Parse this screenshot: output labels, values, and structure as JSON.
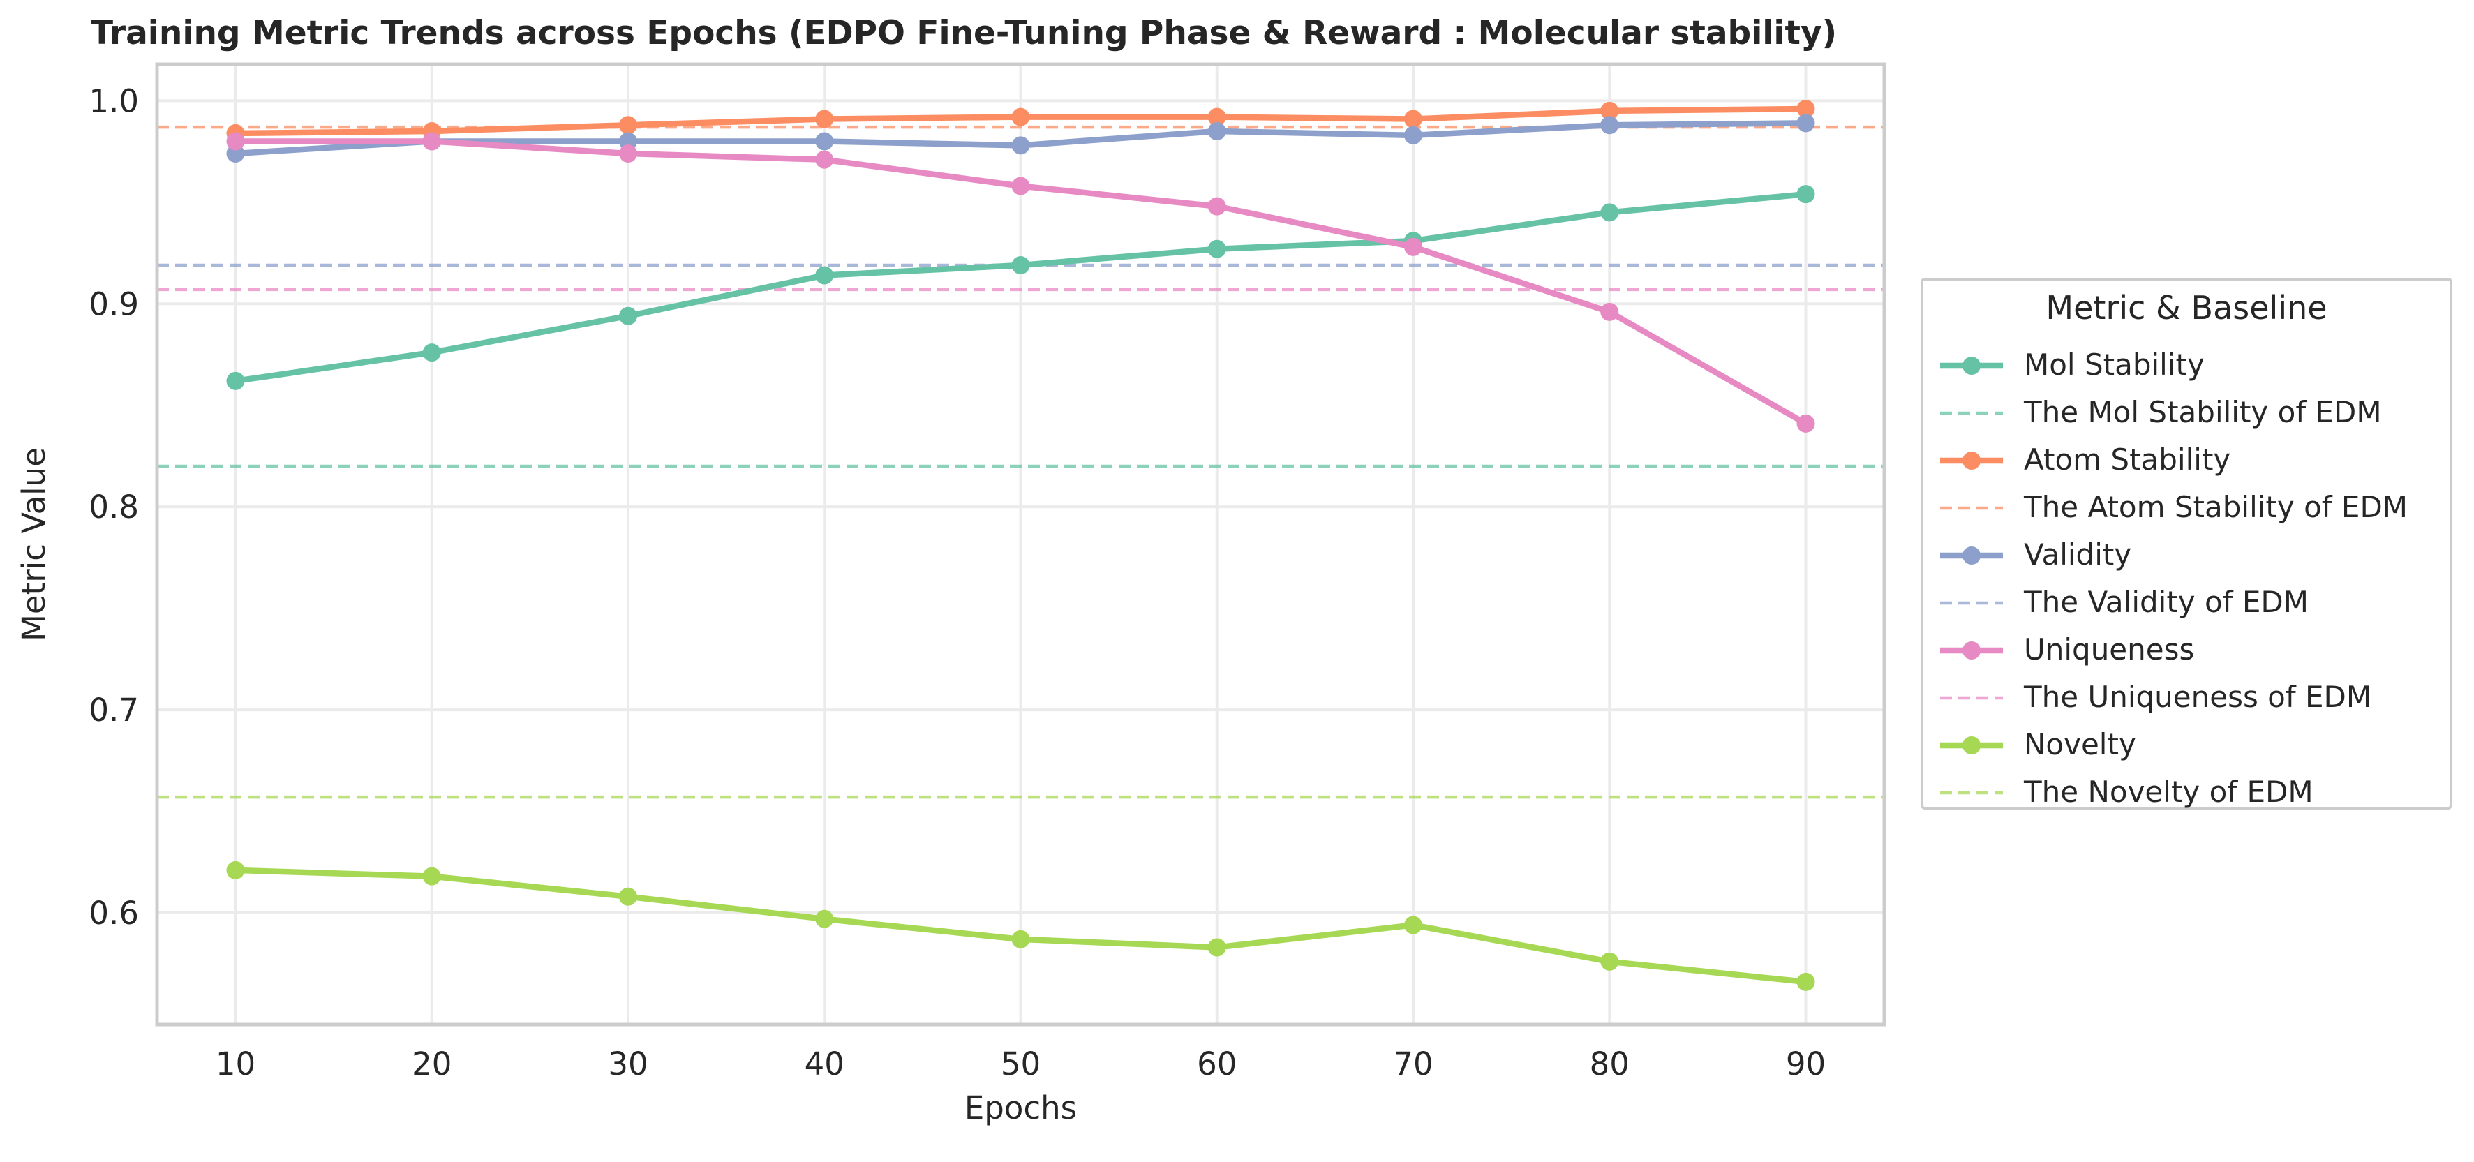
{
  "chart_data": {
    "type": "line",
    "title": "Training Metric Trends across Epochs (EDPO Fine-Tuning Phase & Reward : Molecular stability)",
    "xlabel": "Epochs",
    "ylabel": "Metric Value",
    "x": [
      10,
      20,
      30,
      40,
      50,
      60,
      70,
      80,
      90
    ],
    "xlim": [
      6,
      94
    ],
    "ylim": [
      0.545,
      1.018
    ],
    "xticks": [
      10,
      20,
      30,
      40,
      50,
      60,
      70,
      80,
      90
    ],
    "yticks": [
      0.6,
      0.7,
      0.8,
      0.9,
      1.0
    ],
    "ytick_labels": [
      "0.6",
      "0.7",
      "0.8",
      "0.9",
      "1.0"
    ],
    "grid": true,
    "legend_title": "Metric & Baseline",
    "legend_placement": "right-outside",
    "series": [
      {
        "name": "Mol Stability",
        "color": "#66c2a5",
        "values": [
          0.862,
          0.876,
          0.894,
          0.914,
          0.919,
          0.927,
          0.931,
          0.945,
          0.954
        ]
      },
      {
        "name": "Atom Stability",
        "color": "#fc8d62",
        "values": [
          0.984,
          0.985,
          0.988,
          0.991,
          0.992,
          0.992,
          0.991,
          0.995,
          0.996
        ]
      },
      {
        "name": "Validity",
        "color": "#8da0cb",
        "values": [
          0.974,
          0.98,
          0.98,
          0.98,
          0.978,
          0.985,
          0.983,
          0.988,
          0.989
        ]
      },
      {
        "name": "Uniqueness",
        "color": "#e78ac3",
        "values": [
          0.98,
          0.98,
          0.974,
          0.971,
          0.958,
          0.948,
          0.928,
          0.896,
          0.841
        ]
      },
      {
        "name": "Novelty",
        "color": "#a6d854",
        "values": [
          0.621,
          0.618,
          0.608,
          0.597,
          0.587,
          0.583,
          0.594,
          0.576,
          0.566
        ]
      }
    ],
    "baselines": [
      {
        "name": "The Mol Stability of EDM",
        "color": "#66c2a5",
        "value": 0.82
      },
      {
        "name": "The Atom Stability of EDM",
        "color": "#fc8d62",
        "value": 0.987
      },
      {
        "name": "The Validity of EDM",
        "color": "#8da0cb",
        "value": 0.919
      },
      {
        "name": "The Uniqueness of EDM",
        "color": "#e78ac3",
        "value": 0.907
      },
      {
        "name": "The Novelty of EDM",
        "color": "#a6d854",
        "value": 0.657
      }
    ]
  }
}
